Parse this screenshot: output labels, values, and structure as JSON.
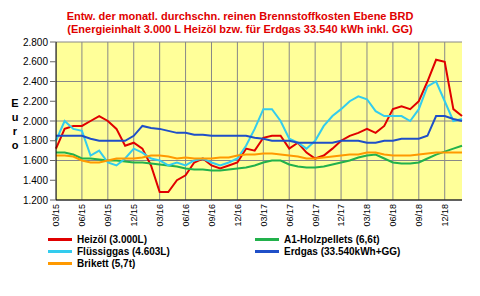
{
  "chart_data": {
    "type": "line",
    "title": "Entw. der monatl. durchschn. reinen Brennstoffkosten Ebene BRD",
    "subtitle": "(Energieinhalt 3.000 L Heizöl bzw. für Erdgas 33.540 kWh inkl. GG)",
    "ylabel": "Euro",
    "categories": [
      "03/15",
      null,
      null,
      "06/15",
      null,
      null,
      "09/15",
      null,
      null,
      "12/15",
      null,
      null,
      "03/16",
      null,
      null,
      "06/16",
      null,
      null,
      "09/16",
      null,
      null,
      "12/16",
      null,
      null,
      "03/17",
      null,
      null,
      "06/17",
      null,
      null,
      "09/17",
      null,
      null,
      "12/17",
      null,
      null,
      "03/18",
      null,
      null,
      "06/18",
      null,
      null,
      "09/18",
      null,
      null,
      "12/18",
      null,
      null
    ],
    "series": [
      {
        "name": "Heizöl (3.000L)",
        "color": "#e00000",
        "values": [
          1.72,
          1.92,
          1.95,
          1.95,
          2.0,
          2.05,
          2.0,
          1.92,
          1.75,
          1.78,
          1.72,
          1.55,
          1.28,
          1.28,
          1.4,
          1.45,
          1.58,
          1.62,
          1.55,
          1.52,
          1.55,
          1.58,
          1.72,
          1.7,
          1.83,
          1.85,
          1.85,
          1.72,
          1.78,
          1.68,
          1.62,
          1.65,
          1.72,
          1.8,
          1.85,
          1.88,
          1.92,
          1.88,
          1.95,
          2.12,
          2.15,
          2.12,
          2.2,
          2.4,
          2.62,
          2.6,
          2.12,
          2.05
        ]
      },
      {
        "name": "A1-Holzpellets (6,6t)",
        "color": "#22b14c",
        "values": [
          1.68,
          1.68,
          1.66,
          1.62,
          1.62,
          1.61,
          1.6,
          1.6,
          1.59,
          1.58,
          1.58,
          1.57,
          1.56,
          1.55,
          1.54,
          1.52,
          1.51,
          1.51,
          1.5,
          1.5,
          1.51,
          1.52,
          1.53,
          1.55,
          1.58,
          1.6,
          1.6,
          1.56,
          1.54,
          1.53,
          1.53,
          1.54,
          1.56,
          1.58,
          1.6,
          1.63,
          1.65,
          1.66,
          1.62,
          1.58,
          1.57,
          1.57,
          1.58,
          1.62,
          1.66,
          1.69,
          1.72,
          1.75
        ]
      },
      {
        "name": "Flüssiggas (4.603L)",
        "color": "#33ccee",
        "values": [
          1.8,
          2.0,
          1.92,
          1.9,
          1.65,
          1.7,
          1.58,
          1.55,
          1.62,
          1.72,
          1.68,
          1.62,
          1.6,
          1.55,
          1.58,
          1.55,
          1.6,
          1.62,
          1.58,
          1.55,
          1.58,
          1.62,
          1.75,
          1.92,
          2.12,
          2.12,
          2.0,
          1.82,
          1.78,
          1.72,
          1.8,
          1.95,
          2.05,
          2.12,
          2.2,
          2.25,
          2.22,
          2.1,
          2.05,
          2.05,
          2.05,
          2.0,
          2.12,
          2.35,
          2.4,
          2.2,
          2.0,
          2.02
        ]
      },
      {
        "name": "Erdgas (33.540kWh+GG)",
        "color": "#1f4fc8",
        "values": [
          1.85,
          1.85,
          1.85,
          1.85,
          1.82,
          1.8,
          1.8,
          1.8,
          1.8,
          1.85,
          1.95,
          1.93,
          1.92,
          1.9,
          1.88,
          1.88,
          1.86,
          1.86,
          1.85,
          1.85,
          1.85,
          1.85,
          1.85,
          1.83,
          1.82,
          1.8,
          1.8,
          1.8,
          1.78,
          1.78,
          1.78,
          1.78,
          1.78,
          1.8,
          1.8,
          1.8,
          1.78,
          1.78,
          1.8,
          1.8,
          1.82,
          1.82,
          1.82,
          1.85,
          2.05,
          2.05,
          2.02,
          2.0
        ]
      },
      {
        "name": "Brikett (5,7t)",
        "color": "#ff9900",
        "values": [
          1.65,
          1.65,
          1.64,
          1.6,
          1.58,
          1.58,
          1.6,
          1.62,
          1.62,
          1.62,
          1.63,
          1.65,
          1.65,
          1.64,
          1.62,
          1.63,
          1.62,
          1.62,
          1.62,
          1.63,
          1.63,
          1.65,
          1.66,
          1.66,
          1.67,
          1.67,
          1.66,
          1.65,
          1.64,
          1.62,
          1.62,
          1.63,
          1.64,
          1.65,
          1.66,
          1.66,
          1.68,
          1.68,
          1.66,
          1.65,
          1.65,
          1.65,
          1.66,
          1.67,
          1.68,
          1.68,
          1.68,
          1.68
        ]
      }
    ],
    "ylim": [
      1.2,
      2.8
    ],
    "yticks": [
      {
        "value": 1.2,
        "label": "1.200"
      },
      {
        "value": 1.4,
        "label": "1.400"
      },
      {
        "value": 1.6,
        "label": "1.600"
      },
      {
        "value": 1.8,
        "label": "1.800"
      },
      {
        "value": 2.0,
        "label": "2.000"
      },
      {
        "value": 2.2,
        "label": "2.200"
      },
      {
        "value": 2.4,
        "label": "2.400"
      },
      {
        "value": 2.6,
        "label": "2.600"
      },
      {
        "value": 2.8,
        "label": "2.800"
      }
    ],
    "grid": true,
    "legend": "bottom"
  }
}
